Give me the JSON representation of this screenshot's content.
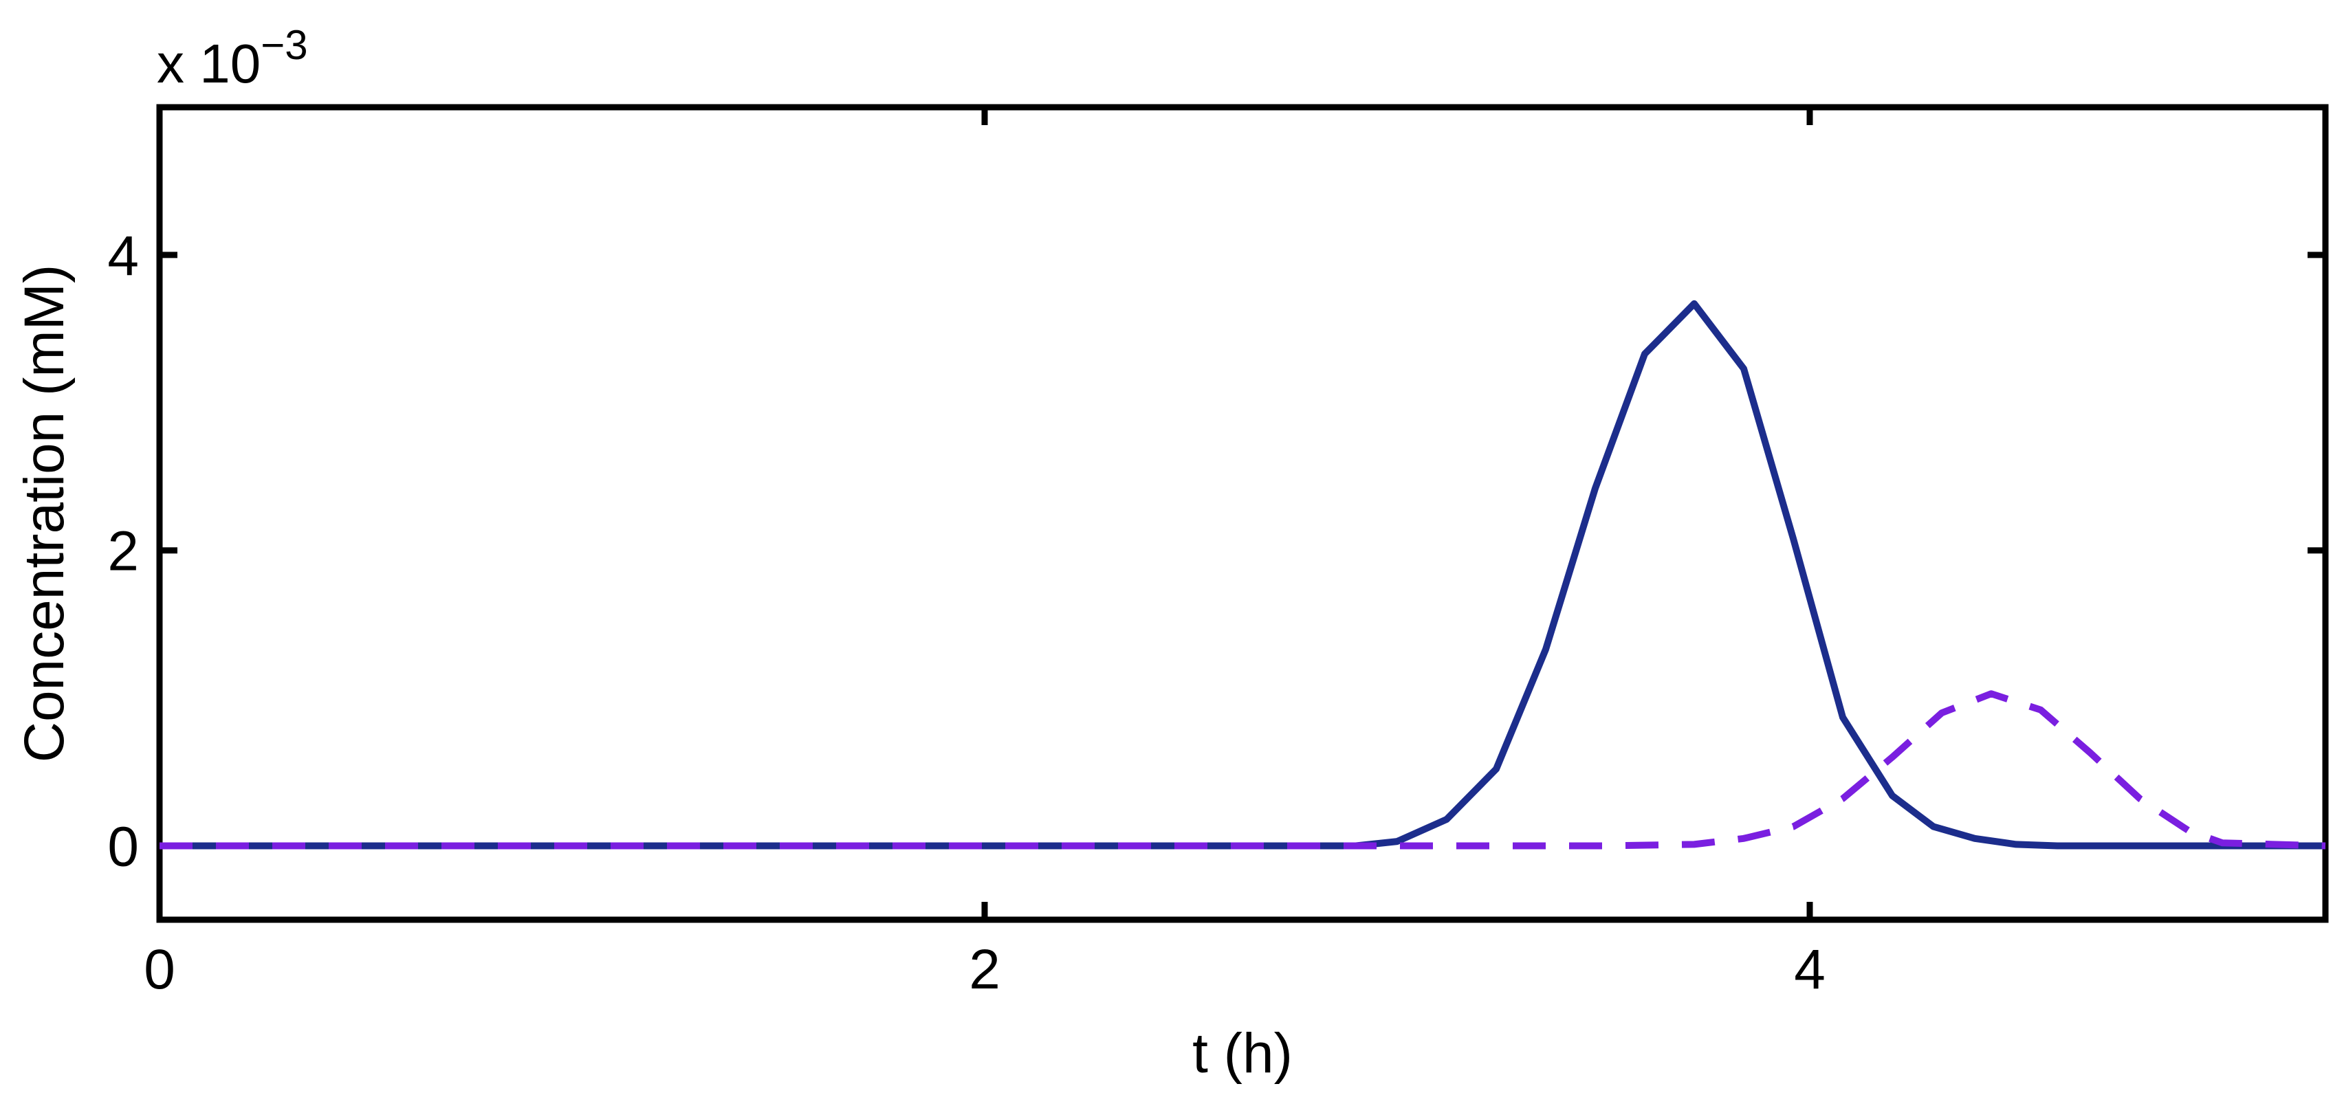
{
  "chart_data": {
    "type": "line",
    "title": "",
    "xlabel": "t (h)",
    "ylabel": "Concentration (mM)",
    "y_multiplier_label": {
      "base": "x 10",
      "exponent": "−3"
    },
    "xlim": [
      0,
      5.25
    ],
    "ylim": [
      -0.5,
      5
    ],
    "y_scale_note": "values in units of 1e-3 mM",
    "xticks": [
      0,
      2,
      4
    ],
    "xtick_labels": [
      "0",
      "2",
      "4"
    ],
    "yticks": [
      0,
      2,
      4
    ],
    "ytick_labels": [
      "0",
      "2",
      "4"
    ],
    "grid": false,
    "legend": "none",
    "series": [
      {
        "style": "solid",
        "color": "#1c2d8c",
        "x": [
          0,
          0.5,
          1.0,
          1.5,
          2.0,
          2.5,
          2.9,
          3.0,
          3.12,
          3.24,
          3.36,
          3.48,
          3.6,
          3.72,
          3.84,
          3.96,
          4.08,
          4.2,
          4.3,
          4.4,
          4.5,
          4.6,
          4.8,
          5.0,
          5.25
        ],
        "y": [
          0,
          0,
          0,
          0,
          0,
          0,
          0,
          0.03,
          0.18,
          0.52,
          1.33,
          2.42,
          3.33,
          3.67,
          3.23,
          2.08,
          0.87,
          0.34,
          0.13,
          0.05,
          0.01,
          0,
          0,
          0,
          0
        ]
      },
      {
        "style": "dashed",
        "color": "#7a1fe0",
        "x": [
          0,
          0.5,
          1.0,
          1.5,
          2.0,
          2.5,
          3.0,
          3.5,
          3.72,
          3.84,
          3.96,
          4.08,
          4.2,
          4.32,
          4.44,
          4.56,
          4.68,
          4.8,
          4.92,
          5.0,
          5.25
        ],
        "y": [
          0,
          0,
          0,
          0,
          0,
          0,
          0,
          0,
          0.01,
          0.05,
          0.13,
          0.32,
          0.6,
          0.9,
          1.03,
          0.92,
          0.63,
          0.32,
          0.1,
          0.02,
          0
        ]
      }
    ]
  }
}
